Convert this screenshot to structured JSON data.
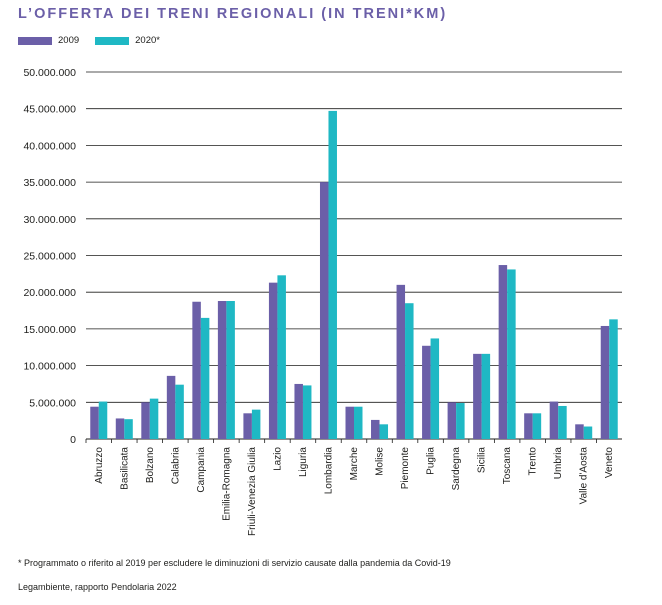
{
  "title": "L’OFFERTA DEI TRENI REGIONALI (IN TRENI*KM)",
  "legend": [
    {
      "label": "2009",
      "color": "#6b5fa8"
    },
    {
      "label": "2020*",
      "color": "#1fb8c4"
    }
  ],
  "footnote": "* Programmato o riferito al 2019 per escludere le diminuzioni di servizio causate dalla pandemia da Covid-19",
  "source": "Legambiente, rapporto Pendolaria 2022",
  "chart_data": {
    "type": "bar",
    "ylim": [
      0,
      50000000
    ],
    "yticks": [
      {
        "value": 50000000,
        "label": "50.000.000"
      },
      {
        "value": 45000000,
        "label": "45.000.000"
      },
      {
        "value": 40000000,
        "label": "40.000.000"
      },
      {
        "value": 35000000,
        "label": "35.000.000"
      },
      {
        "value": 30000000,
        "label": "30.000.000"
      },
      {
        "value": 25000000,
        "label": "25.000.000"
      },
      {
        "value": 20000000,
        "label": "20.000.000"
      },
      {
        "value": 15000000,
        "label": "15.000.000"
      },
      {
        "value": 10000000,
        "label": "10.000.000"
      },
      {
        "value": 5000000,
        "label": "5.000.000"
      },
      {
        "value": 0,
        "label": "0"
      }
    ],
    "grid": true,
    "legend_position": "top-left",
    "categories": [
      "Abruzzo",
      "Basilicata",
      "Bolzano",
      "Calabria",
      "Campania",
      "Emilia-Romagna",
      "Friuli-Venezia Giulia",
      "Lazio",
      "Liguria",
      "Lombardia",
      "Marche",
      "Molise",
      "Piemonte",
      "Puglia",
      "Sardegna",
      "Sicilia",
      "Toscana",
      "Trento",
      "Umbria",
      "Valle d'Aosta",
      "Veneto"
    ],
    "series": [
      {
        "name": "2009",
        "color": "#6b5fa8",
        "values": [
          4400000,
          2800000,
          5000000,
          8600000,
          18700000,
          18800000,
          3500000,
          21300000,
          7500000,
          35000000,
          4400000,
          2600000,
          21000000,
          12700000,
          5000000,
          11600000,
          23700000,
          3500000,
          5100000,
          2000000,
          15400000
        ]
      },
      {
        "name": "2020*",
        "color": "#1fb8c4",
        "values": [
          5100000,
          2700000,
          5500000,
          7400000,
          16500000,
          18800000,
          4000000,
          22300000,
          7300000,
          44700000,
          4400000,
          2000000,
          18500000,
          13700000,
          4900000,
          11600000,
          23100000,
          3500000,
          4500000,
          1700000,
          16300000
        ]
      }
    ]
  }
}
